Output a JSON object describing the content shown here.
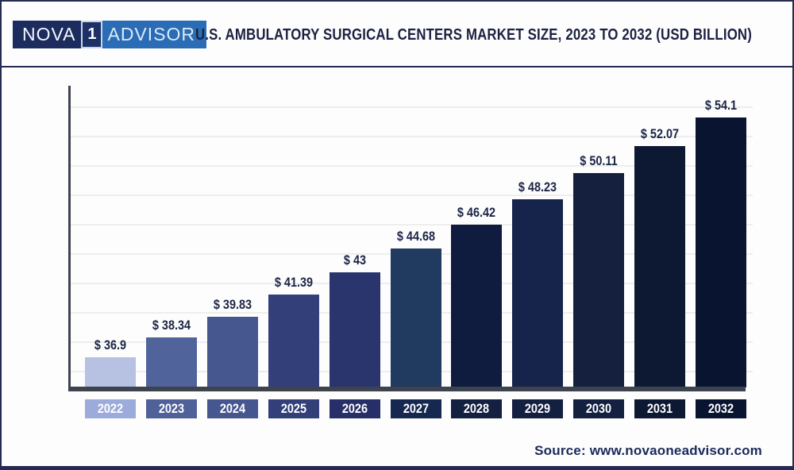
{
  "brand": {
    "logo": {
      "left_text": "NOVA",
      "badge_text": "1",
      "right_text": "ADVISOR",
      "left_bg": "#1c2c5e",
      "right_bg": "#2a6cb5",
      "badge_bg": "#1d3166",
      "badge_border": "#c8d6ea",
      "text_color": "#ffffff"
    }
  },
  "header": {
    "title": "U.S. AMBULATORY SURGICAL CENTERS MARKET SIZE, 2023 TO 2032 (USD BILLION)",
    "title_color": "#1b2140",
    "divider_color": "#23284f"
  },
  "footer": {
    "source": "Source: www.novaoneadvisor.com",
    "color": "#1b2a5a"
  },
  "chart_data": {
    "type": "bar",
    "title": "U.S. Ambulatory Surgical Centers Market Size, 2023 to 2032 (USD Billion)",
    "unit": "USD Billion",
    "categories": [
      "2022",
      "2023",
      "2024",
      "2025",
      "2026",
      "2027",
      "2028",
      "2029",
      "2030",
      "2031",
      "2032"
    ],
    "values": [
      36.9,
      38.34,
      39.83,
      41.39,
      43,
      44.68,
      46.42,
      48.23,
      50.11,
      52.07,
      54.1
    ],
    "value_labels": [
      "$ 36.9",
      "$ 38.34",
      "$ 39.83",
      "$ 41.39",
      "$ 43",
      "$ 44.68",
      "$ 46.42",
      "$ 48.23",
      "$ 50.11",
      "$ 52.07",
      "$ 54.1"
    ],
    "bar_colors": [
      "#b7c2e3",
      "#51639b",
      "#46578f",
      "#333f78",
      "#2a346d",
      "#213a60",
      "#0f1c40",
      "#16234a",
      "#15203e",
      "#0d1833",
      "#091430"
    ],
    "axis_label_colors": [
      "#9dabdb",
      "#4f6198",
      "#46578f",
      "#333f79",
      "#272f68",
      "#16284f",
      "#13203f",
      "#13203f",
      "#13203f",
      "#0d1833",
      "#091430"
    ],
    "xlabel": "",
    "ylabel": "",
    "ylim": [
      34.7,
      56.3
    ],
    "y_axis_tick_labels_visible": false,
    "grid": true,
    "gridline_color": "#eeeeee",
    "axis_color": "#3e4350",
    "value_label_color": "#1b2444",
    "category_text_color": "#ffffff",
    "legend": false
  }
}
